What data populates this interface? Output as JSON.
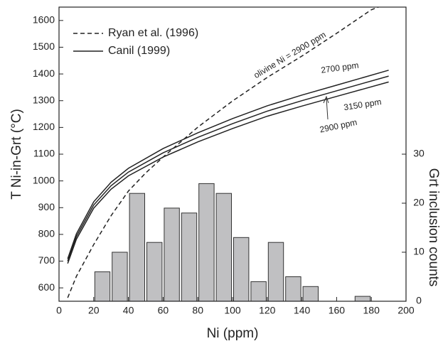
{
  "chart_data": {
    "type": "line-histogram",
    "xlabel": "Ni (ppm)",
    "ylabel": "T Ni-in-Grt (°C)",
    "y2label": "Grt inclusion counts",
    "xlim": [
      0,
      200
    ],
    "xticks": [
      0,
      20,
      40,
      60,
      80,
      100,
      120,
      140,
      160,
      180,
      200
    ],
    "ylim": [
      550,
      1650
    ],
    "yticks": [
      600,
      700,
      800,
      900,
      1000,
      1100,
      1200,
      1300,
      1400,
      1500,
      1600
    ],
    "y2lim": [
      0,
      60
    ],
    "y2ticks": [
      0,
      10,
      20,
      30
    ],
    "grid": false,
    "legend": "upper left",
    "series": [
      {
        "name": "Ryan et al. (1996)",
        "color": "#222222",
        "dashed": true,
        "x": [
          5,
          10,
          20,
          30,
          40,
          50,
          60,
          80,
          100,
          120,
          140,
          160,
          180,
          184
        ],
        "values": [
          563,
          643,
          762,
          870,
          962,
          1030,
          1089,
          1201,
          1299,
          1387,
          1467,
          1552,
          1640,
          1650
        ],
        "annotation": "olivine Ni = 2900 ppm"
      },
      {
        "name": "Canil (1999)",
        "color": "#222222",
        "dashed": false,
        "x": [
          5,
          10,
          20,
          30,
          40,
          60,
          80,
          100,
          120,
          140,
          160,
          190
        ],
        "curves": [
          {
            "label": "2700 ppm",
            "values": [
              709,
              802,
              922,
              995,
              1047,
              1121,
              1180,
              1233,
              1281,
              1321,
              1358,
              1414
            ]
          },
          {
            "label": "2900 ppm",
            "values": [
              700,
              792,
              910,
              982,
              1033,
              1105,
              1163,
              1214,
              1261,
              1300,
              1337,
              1392
            ]
          },
          {
            "label": "3150 ppm",
            "values": [
              691,
              782,
              898,
              969,
              1019,
              1089,
              1146,
              1196,
              1242,
              1280,
              1316,
              1370
            ]
          }
        ]
      }
    ],
    "histogram": {
      "axis": "y2",
      "color": "#c0c0c2",
      "bins": [
        20,
        30,
        40,
        50,
        60,
        70,
        80,
        90,
        100,
        110,
        120,
        130,
        140,
        150,
        160,
        170,
        180
      ],
      "counts": [
        6,
        10,
        22,
        12,
        19,
        18,
        24,
        22,
        13,
        4,
        12,
        5,
        3,
        0,
        0,
        1
      ]
    }
  }
}
